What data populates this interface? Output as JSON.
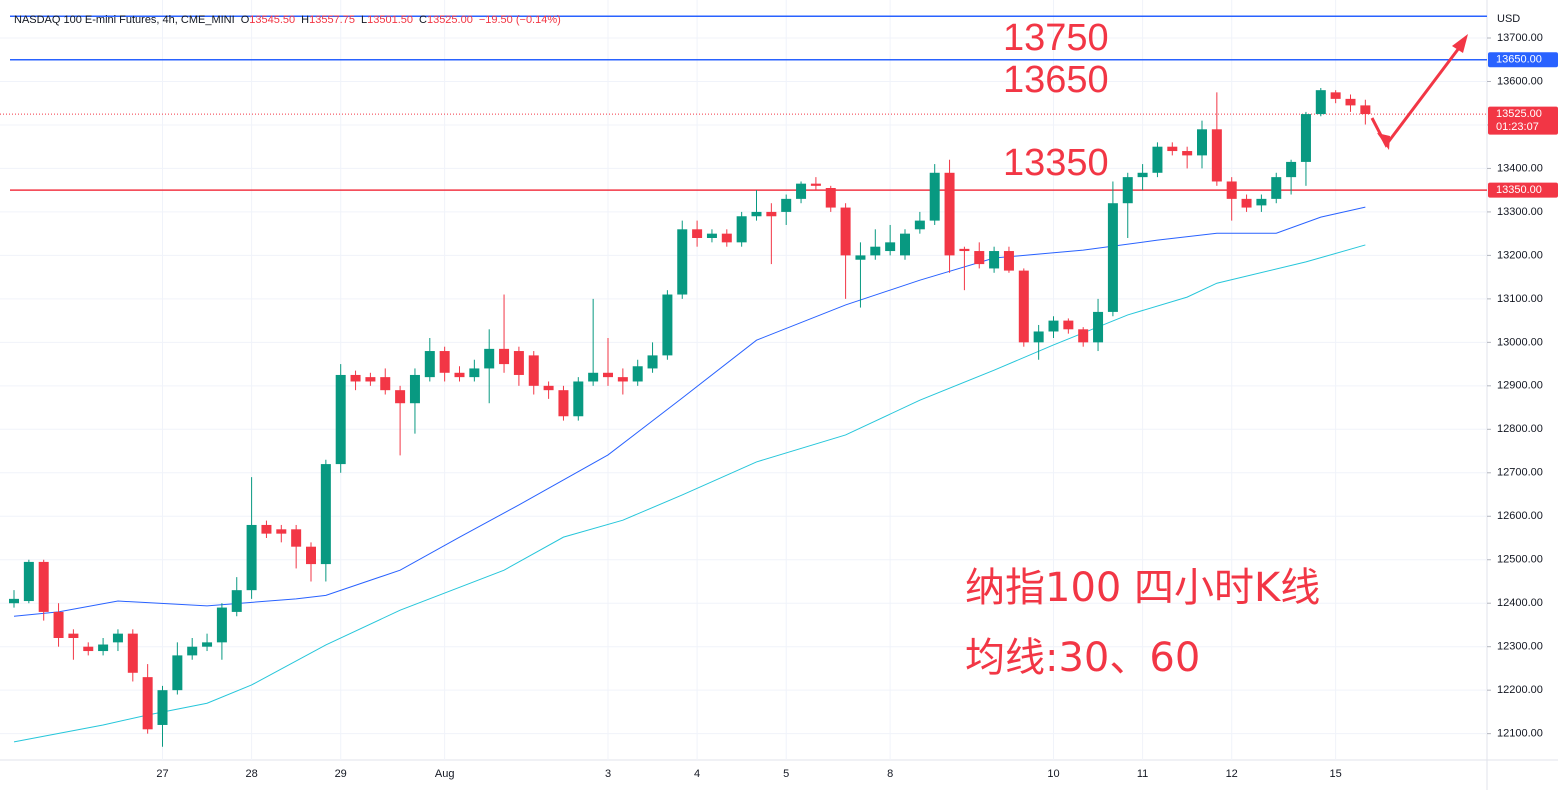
{
  "chart_data": {
    "type": "candlestick",
    "header": {
      "symbol": "NASDAQ 100 E-mini Futures, 4h, CME_MINI",
      "fields": [
        {
          "prefix": "O",
          "value": "13545.50"
        },
        {
          "prefix": "H",
          "value": "13557.75"
        },
        {
          "prefix": "L",
          "value": "13501.50"
        },
        {
          "prefix": "C",
          "value": "13525.00"
        }
      ],
      "change": "−19.50 (−0.14%)"
    },
    "currency": "USD",
    "up_color": "#089981",
    "down_color": "#f23645",
    "categories": [
      null,
      null,
      null,
      null,
      null,
      null,
      null,
      null,
      null,
      null,
      "27",
      null,
      null,
      null,
      null,
      null,
      "28",
      null,
      null,
      null,
      null,
      null,
      "29",
      null,
      null,
      null,
      null,
      null,
      null,
      "Aug",
      null,
      null,
      null,
      null,
      null,
      null,
      null,
      null,
      null,
      null,
      "3",
      null,
      null,
      null,
      null,
      null,
      "4",
      null,
      null,
      null,
      null,
      null,
      "5",
      null,
      null,
      null,
      null,
      null,
      null,
      "8",
      null,
      null,
      null,
      null,
      null,
      null,
      null,
      null,
      null,
      null,
      "10",
      null,
      null,
      null,
      null,
      null,
      "11",
      null,
      null,
      null,
      null,
      null,
      "12",
      null,
      null,
      null,
      null,
      null,
      null,
      "15",
      null,
      null
    ],
    "open": [
      12400,
      12405,
      12495,
      12380,
      12330,
      12300,
      12290,
      12310,
      12330,
      12230,
      12120,
      12200,
      12280,
      12300,
      12310,
      12380,
      12430,
      12580,
      12570,
      12570,
      12530,
      12490,
      12720,
      12925,
      12920,
      12920,
      12890,
      12860,
      12920,
      12980,
      12930,
      12920,
      12940,
      12985,
      12980,
      12970,
      12900,
      12890,
      12830,
      12910,
      12930,
      12920,
      12910,
      12940,
      12970,
      13110,
      13260,
      13240,
      13250,
      13230,
      13290,
      13300,
      13300,
      13330,
      13365,
      13355,
      13310,
      13190,
      13200,
      13210,
      13200,
      13260,
      13280,
      13390,
      13215,
      13210,
      13170,
      13210,
      13165,
      13000,
      13025,
      13050,
      13030,
      13000,
      13070,
      13320,
      13380,
      13390,
      13450,
      13440,
      13430,
      13490,
      13370,
      13330,
      13315,
      13330,
      13380,
      13415,
      13525,
      13575,
      13560,
      13545
    ],
    "high": [
      12430,
      12500,
      12500,
      12400,
      12340,
      12310,
      12320,
      12340,
      12340,
      12260,
      12210,
      12310,
      12320,
      12330,
      12400,
      12460,
      12690,
      12590,
      12580,
      12580,
      12540,
      12730,
      12950,
      12935,
      12930,
      12940,
      12900,
      12940,
      13010,
      12990,
      12945,
      12960,
      13030,
      13110,
      12990,
      12980,
      12910,
      12900,
      12920,
      13100,
      13010,
      12940,
      12960,
      13000,
      13120,
      13280,
      13280,
      13260,
      13260,
      13300,
      13350,
      13320,
      13340,
      13370,
      13380,
      13360,
      13320,
      13230,
      13260,
      13270,
      13260,
      13300,
      13410,
      13420,
      13220,
      13230,
      13220,
      13220,
      13170,
      13040,
      13060,
      13055,
      13035,
      13100,
      13370,
      13390,
      13410,
      13460,
      13460,
      13450,
      13510,
      13575,
      13380,
      13340,
      13340,
      13390,
      13420,
      13530,
      13585,
      13580,
      13570,
      13558
    ],
    "low": [
      12390,
      12400,
      12360,
      12300,
      12270,
      12280,
      12280,
      12290,
      12220,
      12100,
      12070,
      12190,
      12270,
      12290,
      12270,
      12370,
      12410,
      12550,
      12540,
      12480,
      12450,
      12450,
      12700,
      12890,
      12900,
      12880,
      12740,
      12790,
      12910,
      12910,
      12910,
      12910,
      12860,
      12930,
      12900,
      12880,
      12870,
      12820,
      12820,
      12900,
      12900,
      12880,
      12900,
      12930,
      12960,
      13100,
      13220,
      13230,
      13220,
      13220,
      13280,
      13180,
      13270,
      13320,
      13350,
      13300,
      13100,
      13080,
      13190,
      13200,
      13190,
      13250,
      13270,
      13160,
      13120,
      13170,
      13160,
      13160,
      12990,
      12960,
      13010,
      13020,
      12990,
      12980,
      13060,
      13240,
      13350,
      13380,
      13430,
      13400,
      13400,
      13360,
      13280,
      13300,
      13300,
      13320,
      13340,
      13360,
      13520,
      13550,
      13530,
      13501
    ],
    "close": [
      12410,
      12495,
      12380,
      12320,
      12320,
      12290,
      12305,
      12330,
      12240,
      12110,
      12200,
      12280,
      12300,
      12310,
      12390,
      12430,
      12580,
      12560,
      12560,
      12530,
      12490,
      12720,
      12925,
      12910,
      12910,
      12890,
      12860,
      12925,
      12980,
      12930,
      12920,
      12940,
      12985,
      12950,
      12925,
      12900,
      12890,
      12830,
      12910,
      12930,
      12920,
      12910,
      12945,
      12970,
      13110,
      13260,
      13240,
      13250,
      13230,
      13290,
      13300,
      13290,
      13330,
      13365,
      13360,
      13310,
      13200,
      13200,
      13220,
      13230,
      13250,
      13280,
      13390,
      13200,
      13210,
      13180,
      13210,
      13165,
      13000,
      13025,
      13050,
      13030,
      13000,
      13070,
      13320,
      13380,
      13390,
      13450,
      13440,
      13430,
      13490,
      13370,
      13330,
      13310,
      13330,
      13380,
      13415,
      13525,
      13580,
      13560,
      13545,
      13525
    ],
    "moving_averages": [
      {
        "color": "#2962ff",
        "x": [
          0,
          3,
          7,
          13,
          19,
          21,
          26,
          30,
          34,
          40,
          45,
          50,
          56,
          61,
          66,
          72,
          77,
          81,
          85,
          88,
          91
        ],
        "values": [
          12370,
          12380,
          12405,
          12394,
          12410,
          12418,
          12476,
          12552,
          12626,
          12741,
          12872,
          13005,
          13086,
          13143,
          13194,
          13212,
          13235,
          13251,
          13251,
          13288,
          13311
        ]
      },
      {
        "color": "#26c6da",
        "x": [
          0,
          6,
          9,
          13,
          16,
          21,
          26,
          33,
          37,
          41,
          45,
          50,
          56,
          61,
          66,
          70,
          75,
          79,
          81,
          87,
          91
        ],
        "values": [
          12081,
          12120,
          12143,
          12170,
          12212,
          12304,
          12384,
          12476,
          12552,
          12591,
          12649,
          12725,
          12787,
          12867,
          12936,
          12994,
          13063,
          13104,
          13136,
          13185,
          13224
        ]
      }
    ],
    "levels": [
      {
        "value": 13750,
        "color": "#2962ff"
      },
      {
        "value": 13650,
        "color": "#2962ff"
      },
      {
        "value": 13350,
        "color": "#f23645"
      }
    ],
    "price_labels": [
      {
        "value": 13650,
        "label": "13650.00",
        "color": "#2962ff"
      },
      {
        "value": 13525,
        "label": "13525.00",
        "color": "#f23645",
        "timer": "01:23:07"
      },
      {
        "value": 13350,
        "label": "13350.00",
        "color": "#f23645"
      }
    ],
    "annotations": [
      "13750",
      "13650",
      "13350",
      "纳指100 四小时K线",
      "均线:30、60"
    ],
    "ylim": [
      12039.4,
      13787.4
    ],
    "yticks": [
      {
        "value": 12100,
        "label": "12100.00"
      },
      {
        "value": 12200,
        "label": "12200.00"
      },
      {
        "value": 12300,
        "label": "12300.00"
      },
      {
        "value": 12400,
        "label": "12400.00"
      },
      {
        "value": 12500,
        "label": "12500.00"
      },
      {
        "value": 12600,
        "label": "12600.00"
      },
      {
        "value": 12700,
        "label": "12700.00"
      },
      {
        "value": 12800,
        "label": "12800.00"
      },
      {
        "value": 12900,
        "label": "12900.00"
      },
      {
        "value": 13000,
        "label": "13000.00"
      },
      {
        "value": 13100,
        "label": "13100.00"
      },
      {
        "value": 13200,
        "label": "13200.00"
      },
      {
        "value": 13300,
        "label": "13300.00"
      },
      {
        "value": 13400,
        "label": "13400.00"
      },
      {
        "value": 13500,
        "label": "13500.00"
      },
      {
        "value": 13600,
        "label": "13600.00"
      },
      {
        "value": 13700,
        "label": "13700.00"
      }
    ]
  }
}
